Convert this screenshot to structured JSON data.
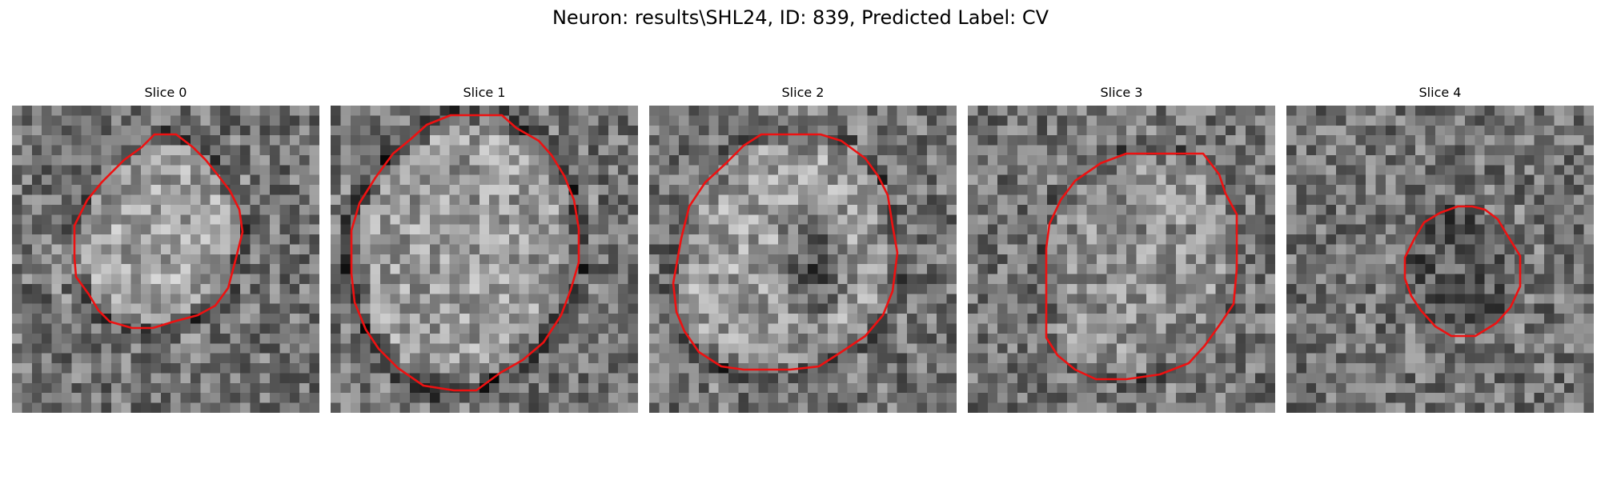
{
  "figure": {
    "title": "Neuron: results\\SHL24, ID: 839, Predicted Label: CV",
    "outline_color": "#ee1111"
  },
  "panels": [
    {
      "title": "Slice 0"
    },
    {
      "title": "Slice 1"
    },
    {
      "title": "Slice 2"
    },
    {
      "title": "Slice 3"
    },
    {
      "title": "Slice 4"
    }
  ]
}
